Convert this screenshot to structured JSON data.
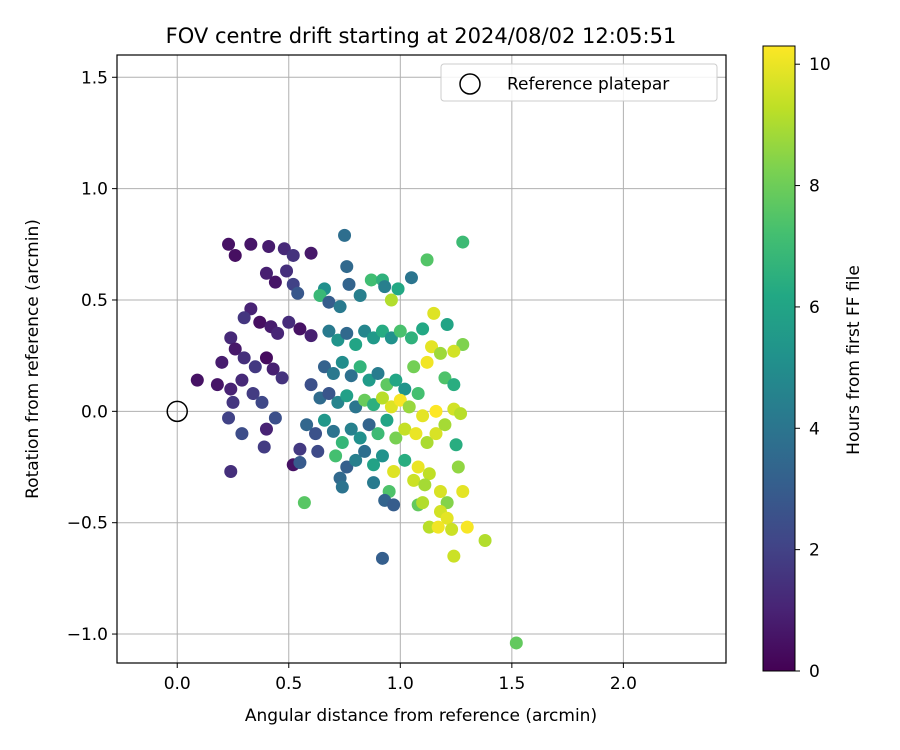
{
  "chart_data": {
    "type": "scatter",
    "title": "FOV centre drift starting at 2024/08/02 12:05:51",
    "xlabel": "Angular distance from reference (arcmin)",
    "ylabel": "Rotation from reference (arcmin)",
    "xlim": [
      -0.27,
      2.46
    ],
    "ylim": [
      -1.13,
      1.6
    ],
    "x_ticks": [
      0.0,
      0.5,
      1.0,
      1.5,
      2.0
    ],
    "x_tick_labels": [
      "0.0",
      "0.5",
      "1.0",
      "1.5",
      "2.0"
    ],
    "y_ticks": [
      -1.0,
      -0.5,
      0.0,
      0.5,
      1.0,
      1.5
    ],
    "y_tick_labels": [
      "−1.0",
      "−0.5",
      "0.0",
      "0.5",
      "1.0",
      "1.5"
    ],
    "grid": true,
    "legend": {
      "position": "top-right",
      "entries": [
        {
          "label": "Reference platepar",
          "marker": "open-circle",
          "color": "#000000"
        }
      ]
    },
    "reference_point": {
      "x": 0.0,
      "y": 0.0
    },
    "colorbar": {
      "label": "Hours from first FF file",
      "range": [
        0,
        10.3
      ],
      "colormap": "viridis",
      "ticks": [
        0,
        2,
        4,
        6,
        8,
        10
      ],
      "tick_labels": [
        "0",
        "2",
        "4",
        "6",
        "8",
        "10"
      ]
    },
    "points": [
      [
        0.23,
        0.75,
        0.5
      ],
      [
        0.26,
        0.7,
        0.4
      ],
      [
        0.33,
        0.75,
        0.6
      ],
      [
        0.41,
        0.74,
        0.8
      ],
      [
        0.48,
        0.73,
        1.2
      ],
      [
        0.52,
        0.7,
        1.5
      ],
      [
        0.6,
        0.71,
        0.7
      ],
      [
        0.4,
        0.62,
        0.9
      ],
      [
        0.49,
        0.63,
        1.4
      ],
      [
        0.44,
        0.58,
        0.6
      ],
      [
        0.52,
        0.57,
        2.0
      ],
      [
        0.54,
        0.53,
        2.8
      ],
      [
        0.33,
        0.46,
        1.0
      ],
      [
        0.3,
        0.42,
        1.6
      ],
      [
        0.37,
        0.4,
        0.4
      ],
      [
        0.42,
        0.38,
        0.8
      ],
      [
        0.45,
        0.35,
        1.1
      ],
      [
        0.5,
        0.4,
        1.3
      ],
      [
        0.55,
        0.37,
        0.5
      ],
      [
        0.6,
        0.34,
        0.9
      ],
      [
        0.24,
        0.33,
        1.2
      ],
      [
        0.26,
        0.28,
        0.7
      ],
      [
        0.3,
        0.24,
        1.4
      ],
      [
        0.35,
        0.2,
        1.7
      ],
      [
        0.4,
        0.24,
        0.3
      ],
      [
        0.43,
        0.19,
        0.9
      ],
      [
        0.47,
        0.15,
        1.5
      ],
      [
        0.2,
        0.22,
        0.8
      ],
      [
        0.18,
        0.12,
        0.6
      ],
      [
        0.24,
        0.1,
        1.0
      ],
      [
        0.29,
        0.14,
        1.2
      ],
      [
        0.34,
        0.08,
        1.8
      ],
      [
        0.38,
        0.04,
        2.2
      ],
      [
        0.09,
        0.14,
        0.5
      ],
      [
        0.25,
        0.04,
        1.6
      ],
      [
        0.23,
        -0.03,
        2.0
      ],
      [
        0.29,
        -0.1,
        2.4
      ],
      [
        0.24,
        -0.27,
        1.4
      ],
      [
        0.4,
        -0.08,
        1.0
      ],
      [
        0.39,
        -0.16,
        1.8
      ],
      [
        0.44,
        -0.03,
        2.5
      ],
      [
        0.52,
        -0.24,
        0.5
      ],
      [
        0.55,
        -0.17,
        1.7
      ],
      [
        0.55,
        -0.23,
        2.9
      ],
      [
        0.63,
        -0.18,
        2.3
      ],
      [
        0.75,
        0.79,
        3.7
      ],
      [
        0.76,
        0.65,
        3.5
      ],
      [
        0.66,
        0.55,
        5.1
      ],
      [
        0.64,
        0.52,
        6.9
      ],
      [
        0.68,
        0.49,
        3.0
      ],
      [
        0.73,
        0.47,
        4.2
      ],
      [
        0.77,
        0.57,
        3.3
      ],
      [
        0.82,
        0.52,
        4.4
      ],
      [
        0.87,
        0.59,
        7.1
      ],
      [
        0.92,
        0.59,
        6.6
      ],
      [
        0.93,
        0.56,
        4.4
      ],
      [
        0.96,
        0.5,
        9.1
      ],
      [
        0.99,
        0.55,
        6.2
      ],
      [
        1.05,
        0.6,
        4.0
      ],
      [
        1.12,
        0.68,
        7.5
      ],
      [
        1.28,
        0.76,
        7.0
      ],
      [
        0.68,
        0.36,
        4.2
      ],
      [
        0.72,
        0.32,
        5.3
      ],
      [
        0.76,
        0.35,
        3.5
      ],
      [
        0.8,
        0.3,
        6.0
      ],
      [
        0.84,
        0.36,
        4.7
      ],
      [
        0.88,
        0.33,
        5.5
      ],
      [
        0.92,
        0.36,
        6.3
      ],
      [
        0.96,
        0.33,
        5.2
      ],
      [
        1.0,
        0.36,
        7.3
      ],
      [
        1.05,
        0.33,
        6.6
      ],
      [
        1.1,
        0.37,
        6.2
      ],
      [
        1.15,
        0.44,
        9.8
      ],
      [
        1.21,
        0.39,
        6.0
      ],
      [
        1.28,
        0.3,
        8.3
      ],
      [
        1.24,
        0.27,
        9.6
      ],
      [
        1.14,
        0.29,
        9.9
      ],
      [
        1.18,
        0.26,
        8.8
      ],
      [
        1.12,
        0.22,
        10.1
      ],
      [
        1.06,
        0.2,
        8.1
      ],
      [
        1.2,
        0.15,
        7.4
      ],
      [
        1.24,
        0.12,
        6.4
      ],
      [
        0.66,
        0.2,
        3.2
      ],
      [
        0.7,
        0.17,
        4.1
      ],
      [
        0.74,
        0.22,
        5.0
      ],
      [
        0.78,
        0.16,
        3.8
      ],
      [
        0.82,
        0.2,
        6.7
      ],
      [
        0.86,
        0.14,
        5.6
      ],
      [
        0.9,
        0.17,
        4.3
      ],
      [
        0.94,
        0.12,
        7.7
      ],
      [
        0.98,
        0.14,
        6.1
      ],
      [
        1.02,
        0.1,
        5.3
      ],
      [
        1.08,
        0.08,
        7.2
      ],
      [
        0.6,
        0.12,
        2.5
      ],
      [
        0.64,
        0.06,
        3.6
      ],
      [
        0.68,
        0.08,
        2.7
      ],
      [
        0.72,
        0.04,
        4.6
      ],
      [
        0.76,
        0.07,
        5.8
      ],
      [
        0.8,
        0.02,
        4.0
      ],
      [
        0.84,
        0.05,
        7.9
      ],
      [
        0.88,
        0.03,
        6.5
      ],
      [
        0.92,
        0.06,
        9.2
      ],
      [
        0.96,
        0.02,
        9.8
      ],
      [
        1.0,
        0.05,
        10.2
      ],
      [
        1.04,
        0.02,
        8.7
      ],
      [
        1.1,
        -0.02,
        9.9
      ],
      [
        1.16,
        0.0,
        10.3
      ],
      [
        1.24,
        0.01,
        9.6
      ],
      [
        1.27,
        -0.01,
        9.2
      ],
      [
        0.58,
        -0.06,
        3.4
      ],
      [
        0.62,
        -0.1,
        2.6
      ],
      [
        0.66,
        -0.04,
        5.4
      ],
      [
        0.7,
        -0.09,
        3.9
      ],
      [
        0.74,
        -0.14,
        6.8
      ],
      [
        0.78,
        -0.08,
        4.5
      ],
      [
        0.82,
        -0.12,
        5.1
      ],
      [
        0.86,
        -0.06,
        3.3
      ],
      [
        0.9,
        -0.1,
        7.0
      ],
      [
        0.94,
        -0.04,
        6.0
      ],
      [
        0.98,
        -0.12,
        8.2
      ],
      [
        1.02,
        -0.08,
        9.4
      ],
      [
        1.07,
        -0.1,
        10.0
      ],
      [
        1.12,
        -0.14,
        9.0
      ],
      [
        1.16,
        -0.1,
        9.7
      ],
      [
        1.2,
        -0.06,
        8.9
      ],
      [
        0.71,
        -0.2,
        7.2
      ],
      [
        0.76,
        -0.25,
        3.1
      ],
      [
        0.8,
        -0.22,
        4.4
      ],
      [
        0.84,
        -0.18,
        3.7
      ],
      [
        0.88,
        -0.24,
        5.9
      ],
      [
        0.92,
        -0.2,
        5.2
      ],
      [
        0.97,
        -0.27,
        9.8
      ],
      [
        1.02,
        -0.22,
        6.4
      ],
      [
        1.08,
        -0.25,
        10.0
      ],
      [
        1.13,
        -0.28,
        9.3
      ],
      [
        1.25,
        -0.15,
        6.4
      ],
      [
        1.26,
        -0.25,
        8.6
      ],
      [
        1.06,
        -0.31,
        9.5
      ],
      [
        1.11,
        -0.33,
        8.9
      ],
      [
        0.73,
        -0.3,
        3.5
      ],
      [
        0.74,
        -0.34,
        3.9
      ],
      [
        0.88,
        -0.32,
        4.2
      ],
      [
        0.95,
        -0.36,
        7.4
      ],
      [
        0.93,
        -0.4,
        3.3
      ],
      [
        0.97,
        -0.42,
        3.0
      ],
      [
        0.57,
        -0.41,
        7.6
      ],
      [
        1.08,
        -0.42,
        7.8
      ],
      [
        1.1,
        -0.41,
        9.1
      ],
      [
        1.18,
        -0.36,
        9.7
      ],
      [
        1.28,
        -0.36,
        9.9
      ],
      [
        1.21,
        -0.41,
        8.4
      ],
      [
        1.18,
        -0.45,
        9.6
      ],
      [
        1.21,
        -0.48,
        9.9
      ],
      [
        1.13,
        -0.52,
        9.2
      ],
      [
        1.17,
        -0.52,
        10.1
      ],
      [
        1.23,
        -0.53,
        9.5
      ],
      [
        1.3,
        -0.52,
        10.2
      ],
      [
        1.38,
        -0.58,
        9.1
      ],
      [
        1.24,
        -0.65,
        9.5
      ],
      [
        0.92,
        -0.66,
        3.1
      ],
      [
        1.52,
        -1.04,
        7.8
      ]
    ]
  }
}
